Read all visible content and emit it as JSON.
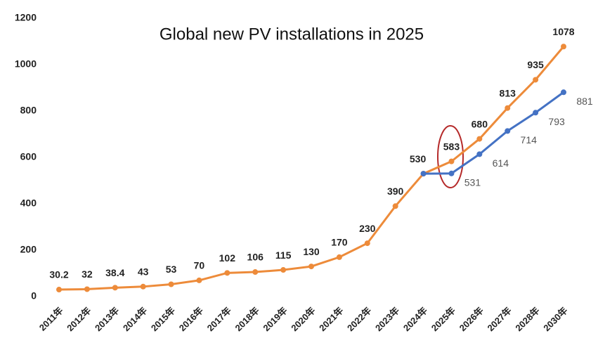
{
  "chart_data": {
    "type": "line",
    "title": "Global new PV installations in 2025",
    "categories": [
      "2011年",
      "2012年",
      "2013年",
      "2014年",
      "2015年",
      "2016年",
      "2017年",
      "2018年",
      "2019年",
      "2020年",
      "2021年",
      "2022年",
      "2023年",
      "2024年",
      "2025年",
      "2026年",
      "2027年",
      "2028年",
      "2030年"
    ],
    "series": [
      {
        "name": "Orange",
        "color": "#ed8b3a",
        "values": [
          30.2,
          32,
          38.4,
          43,
          53,
          70,
          102,
          106,
          115,
          130,
          170,
          230,
          390,
          530,
          583,
          680,
          813,
          935,
          1078
        ]
      },
      {
        "name": "Blue",
        "color": "#4472c4",
        "values": [
          null,
          null,
          null,
          null,
          null,
          null,
          null,
          null,
          null,
          null,
          null,
          null,
          null,
          530,
          531,
          614,
          714,
          793,
          881
        ],
        "value_labels": [
          null,
          null,
          null,
          null,
          null,
          null,
          null,
          null,
          null,
          null,
          null,
          null,
          null,
          null,
          "531",
          "614",
          "714",
          "793",
          "881"
        ]
      }
    ],
    "ylim": [
      0,
      1200
    ],
    "yticks": [
      0,
      200,
      400,
      600,
      800,
      1000,
      1200
    ],
    "grid": false
  }
}
